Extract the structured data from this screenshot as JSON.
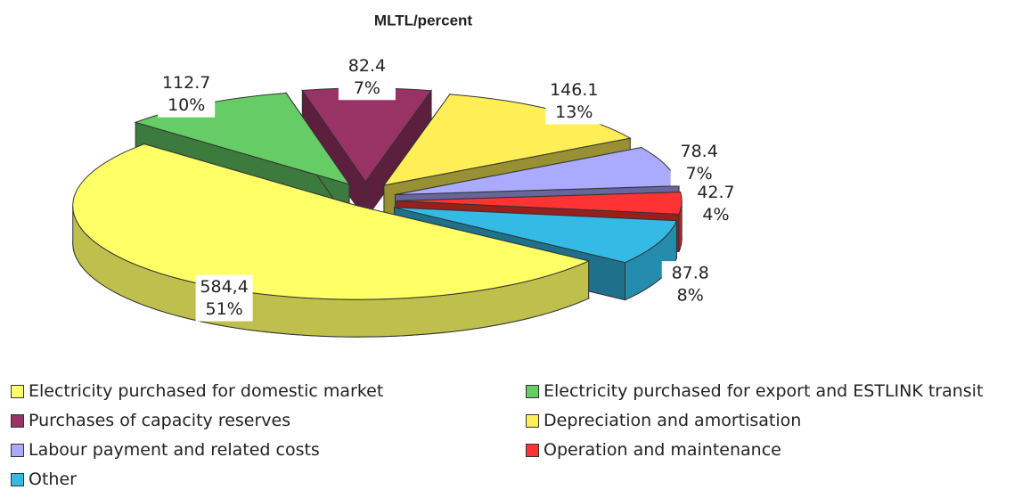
{
  "chart_data": {
    "type": "pie",
    "title": "MLTL/percent",
    "categories": [
      "Electricity purchased for domestic market",
      "Electricity purchased for export and ESTLINK transit",
      "Purchases of capacity reserves",
      "Depreciation and amortisation",
      "Labour payment and related costs",
      "Operation and maintenance",
      "Other"
    ],
    "values": [
      584.4,
      112.7,
      82.4,
      146.1,
      78.4,
      42.7,
      87.8
    ],
    "value_labels": [
      "584,4",
      "112.7",
      "82.4",
      "146.1",
      "78.4",
      "42.7",
      "87.8"
    ],
    "percents": [
      51,
      10,
      7,
      13,
      7,
      4,
      8
    ],
    "percent_labels": [
      "51%",
      "10%",
      "7%",
      "13%",
      "7%",
      "4%",
      "8%"
    ],
    "colors": [
      "#ffff66",
      "#66cc66",
      "#993366",
      "#ffee55",
      "#aaaaff",
      "#ff3333",
      "#33bbe6"
    ],
    "legend": "bottom"
  }
}
